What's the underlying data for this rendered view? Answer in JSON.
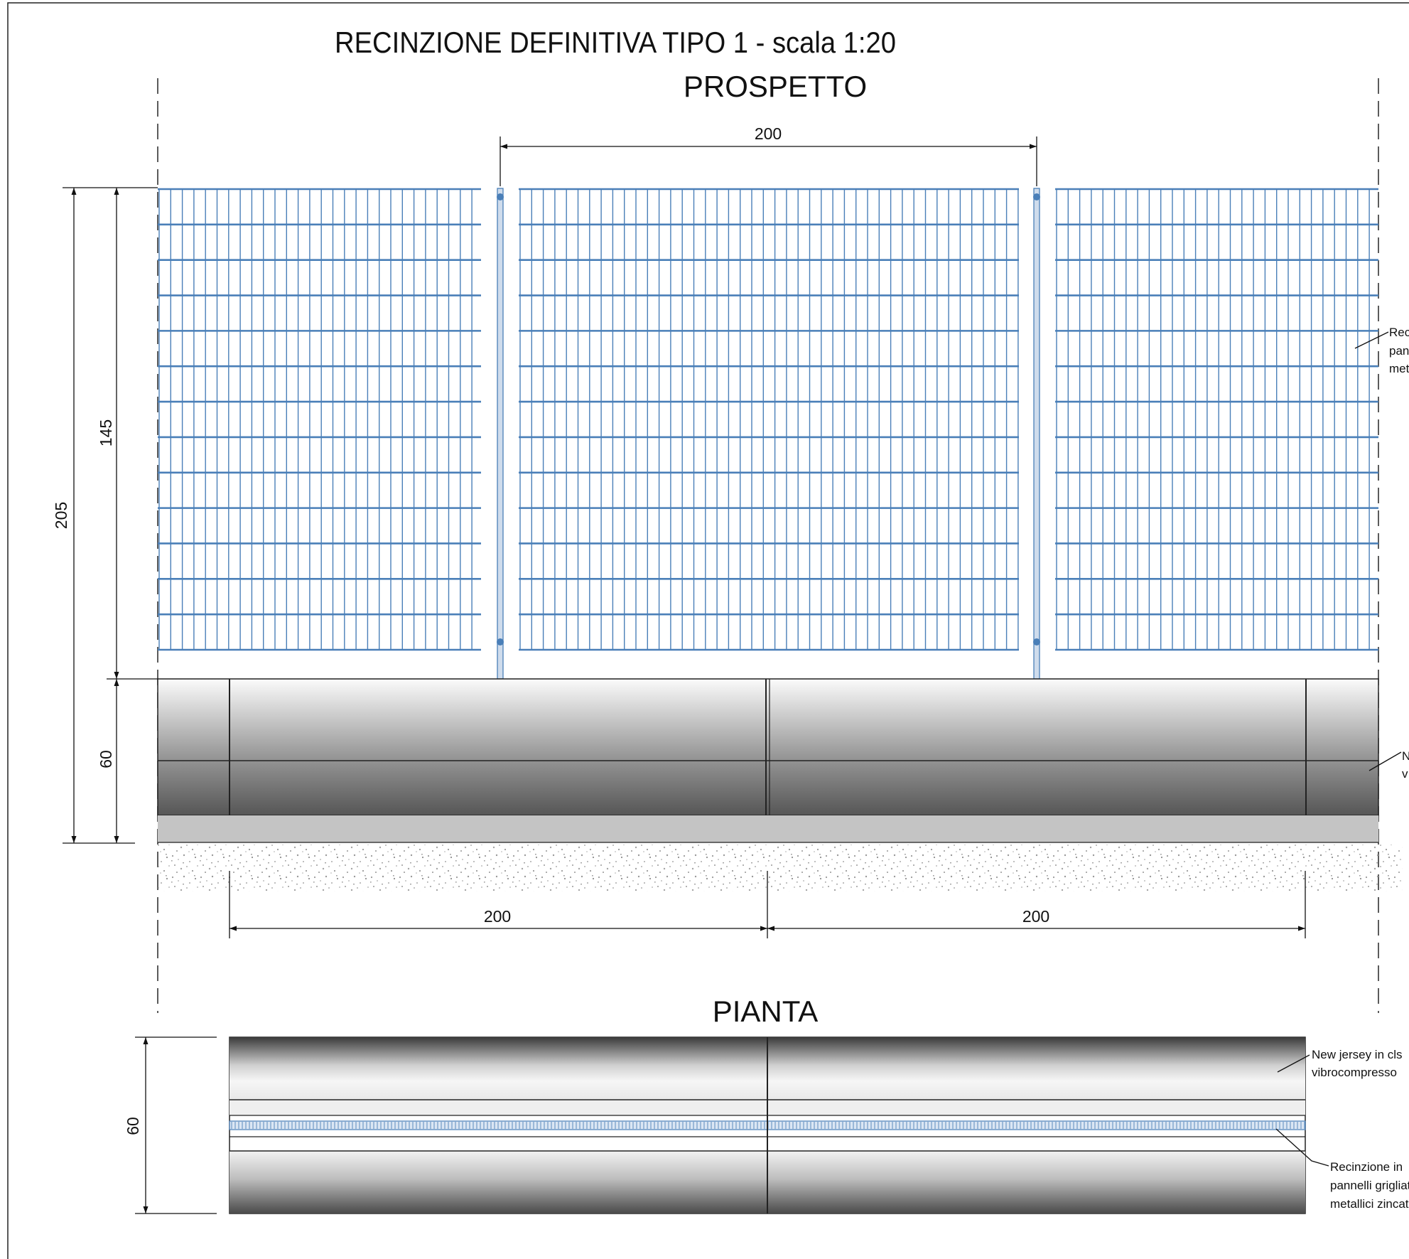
{
  "titles": {
    "main": "RECINZIONE DEFINITIVA TIPO 1  - scala 1:20",
    "prospetto": "PROSPETTO",
    "pianta": "PIANTA"
  },
  "dimensions": {
    "post_spacing": "200",
    "total_height": "205",
    "fence_height": "145",
    "jersey_height": "60",
    "jersey_length_left": "200",
    "jersey_length_right": "200",
    "plan_depth": "60"
  },
  "labels": {
    "fence_elev_l1": "Rec",
    "fence_elev_l2": "pan",
    "fence_elev_l3": "met",
    "jersey_elev_l1": "N",
    "jersey_elev_l2": "v",
    "jersey_plan_l1": "New jersey in cls",
    "jersey_plan_l2": "vibrocompresso",
    "fence_plan_l1": "Recinzione in",
    "fence_plan_l2": "pannelli grigliat",
    "fence_plan_l3": "metallici zincat"
  },
  "colors": {
    "mesh": "#4a7fb8",
    "concrete_light": "#f4f4f4",
    "concrete_dark": "#545454",
    "base": "#c4c4c4",
    "gravel": "#9a9a9a"
  }
}
